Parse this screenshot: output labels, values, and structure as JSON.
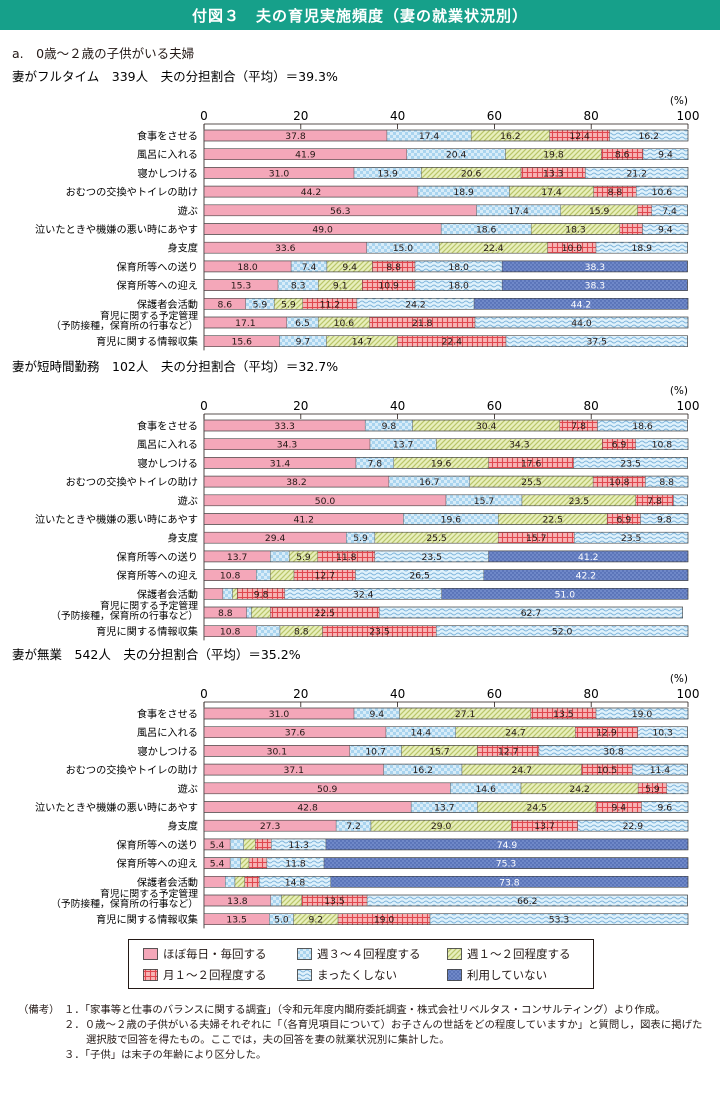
{
  "figure_title": "付図３　夫の育児実施頻度（妻の就業状況別）",
  "subtitle": "a.　0歳～２歳の子供がいる夫婦",
  "colors": {
    "header": "#16a08a",
    "daily": "#f4a7b9",
    "weekly34": "#a9d4ef",
    "weekly12": "#dde6a6",
    "monthly12": "#f08586",
    "never": "#bfe3f5",
    "unused": "#6f88c8"
  },
  "legend": [
    {
      "key": "daily",
      "label": "ほぼ毎日・毎回する"
    },
    {
      "key": "weekly34",
      "label": "週３～４回程度する"
    },
    {
      "key": "weekly12",
      "label": "週１～２回程度する"
    },
    {
      "key": "monthly12",
      "label": "月１～２回程度する"
    },
    {
      "key": "never",
      "label": "まったくしない"
    },
    {
      "key": "unused",
      "label": "利用していない"
    }
  ],
  "notes": {
    "label": "（備考）",
    "items": [
      "１．「家事等と仕事のバランスに関する調査」（令和元年度内閣府委託調査・株式会社リベルタス・コンサルティング）より作成。",
      "２．０歳～２歳の子供がいる夫婦それぞれに「（各育児項目について）お子さんの世話をどの程度していますか」と質問し，図表に掲げた選択肢で回答を得たもの。ここでは，夫の回答を妻の就業状況別に集計した。",
      "３．「子供」は末子の年齢により区分した。"
    ]
  },
  "chart_data": [
    {
      "type": "bar",
      "title": "妻がフルタイム　339人　夫の分担割合（平均）＝39.3%",
      "unit": "(%)",
      "xlim": [
        0,
        100
      ],
      "xticks": [
        "0",
        "20",
        "40",
        "60",
        "80",
        "100"
      ],
      "categories": [
        "食事をさせる",
        "風呂に入れる",
        "寝かしつける",
        "おむつの交換やトイレの助け",
        "遊ぶ",
        "泣いたときや機嫌の悪い時にあやす",
        "身支度",
        "保育所等への送り",
        "保育所等への迎え",
        "保護者会活動",
        "育児に関する予定管理\n（予防接種，保育所の行事など）",
        "育児に関する情報収集"
      ],
      "series": [
        {
          "name": "ほぼ毎日・毎回する",
          "values": [
            37.8,
            41.9,
            31.0,
            44.2,
            56.3,
            49.0,
            33.6,
            18.0,
            15.3,
            8.6,
            17.1,
            15.6
          ]
        },
        {
          "name": "週３～４回程度する",
          "values": [
            17.4,
            20.4,
            13.9,
            18.9,
            17.4,
            18.6,
            15.0,
            7.4,
            8.3,
            5.9,
            6.5,
            9.7
          ]
        },
        {
          "name": "週１～２回程度する",
          "values": [
            16.2,
            19.8,
            20.6,
            17.4,
            15.9,
            18.3,
            22.4,
            9.4,
            9.1,
            5.9,
            10.6,
            14.7
          ]
        },
        {
          "name": "月１～２回程度する",
          "values": [
            12.4,
            8.6,
            13.3,
            8.8,
            2.9,
            4.7,
            10.0,
            8.8,
            10.9,
            11.2,
            21.8,
            22.4
          ]
        },
        {
          "name": "まったくしない",
          "values": [
            16.2,
            9.4,
            21.2,
            10.6,
            7.4,
            9.4,
            18.9,
            18.0,
            18.0,
            24.2,
            44.0,
            37.5
          ]
        },
        {
          "name": "利用していない",
          "values": [
            0,
            0,
            0,
            0,
            0,
            0,
            0,
            38.3,
            38.3,
            44.2,
            0,
            0
          ]
        }
      ]
    },
    {
      "type": "bar",
      "title": "妻が短時間勤務　102人　夫の分担割合（平均）＝32.7%",
      "unit": "(%)",
      "xlim": [
        0,
        100
      ],
      "xticks": [
        "0",
        "20",
        "40",
        "60",
        "80",
        "100"
      ],
      "categories": [
        "食事をさせる",
        "風呂に入れる",
        "寝かしつける",
        "おむつの交換やトイレの助け",
        "遊ぶ",
        "泣いたときや機嫌の悪い時にあやす",
        "身支度",
        "保育所等への送り",
        "保育所等への迎え",
        "保護者会活動",
        "育児に関する予定管理\n（予防接種，保育所の行事など）",
        "育児に関する情報収集"
      ],
      "series": [
        {
          "name": "ほぼ毎日・毎回する",
          "values": [
            33.3,
            34.3,
            31.4,
            38.2,
            50.0,
            41.2,
            29.4,
            13.7,
            10.8,
            3.9,
            8.8,
            10.8
          ]
        },
        {
          "name": "週３～４回程度する",
          "values": [
            9.8,
            13.7,
            7.8,
            16.7,
            15.7,
            19.6,
            5.9,
            3.9,
            2.9,
            2.0,
            1.0,
            4.9
          ]
        },
        {
          "name": "週１～２回程度する",
          "values": [
            30.4,
            34.3,
            19.6,
            25.5,
            23.5,
            22.5,
            25.5,
            5.9,
            4.9,
            1.0,
            3.9,
            8.8
          ]
        },
        {
          "name": "月１～２回程度する",
          "values": [
            7.8,
            6.9,
            17.6,
            10.8,
            7.8,
            6.9,
            15.7,
            11.8,
            12.7,
            9.8,
            22.5,
            23.5
          ]
        },
        {
          "name": "まったくしない",
          "values": [
            18.6,
            10.8,
            23.5,
            8.8,
            2.9,
            9.8,
            23.5,
            23.5,
            26.5,
            32.4,
            62.7,
            52.0
          ]
        },
        {
          "name": "利用していない",
          "values": [
            0,
            0,
            0,
            0,
            0,
            0,
            0,
            41.2,
            42.2,
            51.0,
            0,
            0
          ]
        }
      ]
    },
    {
      "type": "bar",
      "title": "妻が無業　542人　夫の分担割合（平均）＝35.2%",
      "unit": "(%)",
      "xlim": [
        0,
        100
      ],
      "xticks": [
        "0",
        "20",
        "40",
        "60",
        "80",
        "100"
      ],
      "categories": [
        "食事をさせる",
        "風呂に入れる",
        "寝かしつける",
        "おむつの交換やトイレの助け",
        "遊ぶ",
        "泣いたときや機嫌の悪い時にあやす",
        "身支度",
        "保育所等への送り",
        "保育所等への迎え",
        "保護者会活動",
        "育児に関する予定管理\n（予防接種，保育所の行事など）",
        "育児に関する情報収集"
      ],
      "series": [
        {
          "name": "ほぼ毎日・毎回する",
          "values": [
            31.0,
            37.6,
            30.1,
            37.1,
            50.9,
            42.8,
            27.3,
            5.4,
            5.4,
            4.4,
            13.8,
            13.5
          ]
        },
        {
          "name": "週３～４回程度する",
          "values": [
            9.4,
            14.4,
            10.7,
            16.2,
            14.6,
            13.7,
            7.2,
            2.8,
            2.2,
            2.0,
            2.2,
            5.0
          ]
        },
        {
          "name": "週１～２回程度する",
          "values": [
            27.1,
            24.7,
            15.7,
            24.7,
            24.2,
            24.5,
            29.0,
            2.4,
            1.7,
            2.0,
            4.2,
            9.2
          ]
        },
        {
          "name": "月１～２回程度する",
          "values": [
            13.5,
            12.9,
            12.7,
            10.5,
            5.9,
            9.4,
            13.7,
            3.3,
            3.7,
            3.0,
            13.5,
            19.0
          ]
        },
        {
          "name": "まったくしない",
          "values": [
            19.0,
            10.3,
            30.8,
            11.4,
            4.4,
            9.6,
            22.9,
            11.3,
            11.8,
            14.8,
            66.2,
            53.3
          ]
        },
        {
          "name": "利用していない",
          "values": [
            0,
            0,
            0,
            0,
            0,
            0,
            0,
            74.9,
            75.3,
            73.8,
            0,
            0
          ]
        }
      ]
    }
  ]
}
